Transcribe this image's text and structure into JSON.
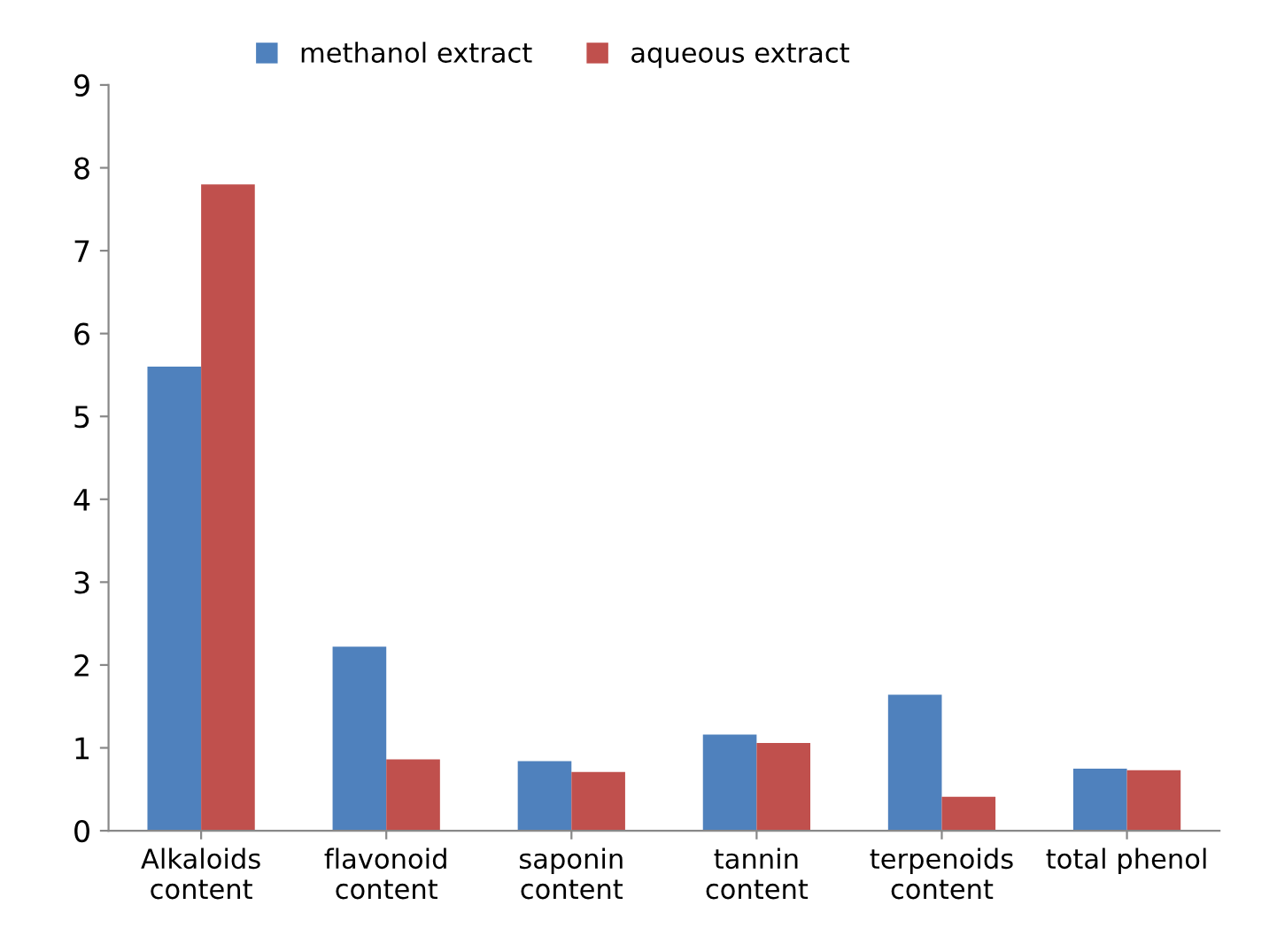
{
  "chart_data": {
    "type": "bar",
    "categories": [
      "Alkaloids\ncontent",
      "flavonoid\ncontent",
      "saponin\ncontent",
      "tannin\ncontent",
      "terpenoids\ncontent",
      "total phenol"
    ],
    "series": [
      {
        "name": "methanol extract",
        "color": "#4f81bd",
        "values": [
          5.6,
          2.22,
          0.84,
          1.16,
          1.64,
          0.75
        ]
      },
      {
        "name": "aqueous extract",
        "color": "#c0504d",
        "values": [
          7.8,
          0.86,
          0.71,
          1.06,
          0.41,
          0.73
        ]
      }
    ],
    "ylim": [
      0,
      9
    ],
    "yticks": [
      0,
      1,
      2,
      3,
      4,
      5,
      6,
      7,
      8,
      9
    ],
    "grid": false,
    "legend": "top"
  }
}
